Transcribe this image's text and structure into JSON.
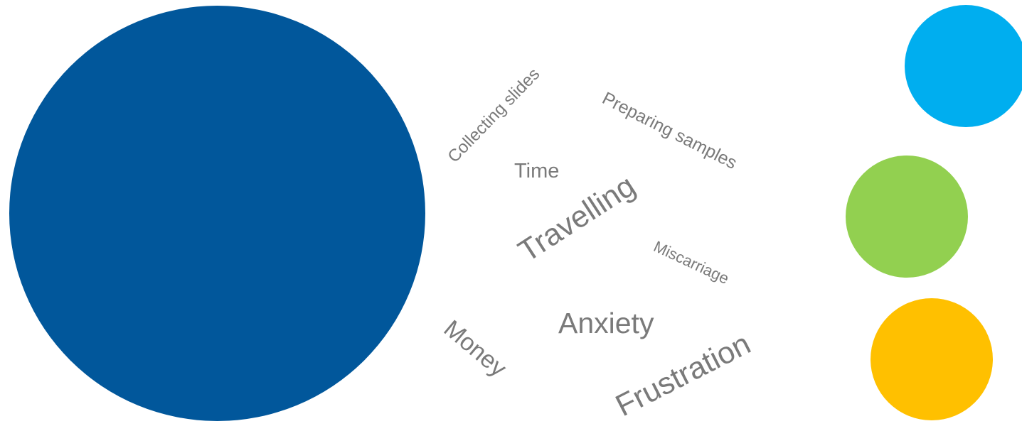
{
  "colors": {
    "big_circle": "#01579b",
    "blue_circle": "#00aeef",
    "green_circle": "#92d050",
    "yellow_circle": "#ffc000",
    "word_text": "#7a7a7a"
  },
  "words": {
    "collecting_slides": "Collecting slides",
    "preparing_samples": "Preparing samples",
    "time": "Time",
    "travelling": "Travelling",
    "miscarriage": "Miscarriage",
    "money": "Money",
    "anxiety": "Anxiety",
    "frustration": "Frustration"
  }
}
